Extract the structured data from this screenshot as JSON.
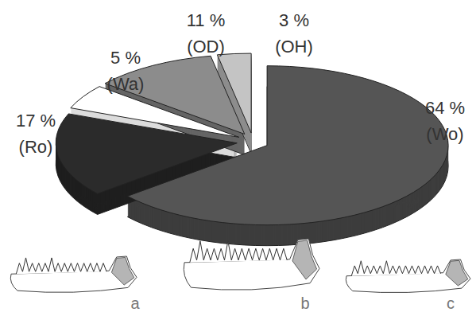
{
  "chart_data": {
    "type": "pie",
    "categories": [
      "(Wo)",
      "(Ro)",
      "(Wa)",
      "(OD)",
      "(OH)"
    ],
    "values": [
      64,
      17,
      5,
      11,
      3
    ],
    "value_labels": [
      "64 %",
      "17 %",
      "5 %",
      "11 %",
      "3 %"
    ],
    "colors": [
      "#555555",
      "#2b2b2b",
      "#ffffff",
      "#8c8c8c",
      "#c4c4c4"
    ],
    "data_labels": true
  },
  "figure": {
    "panel_labels": [
      "a",
      "b",
      "c"
    ]
  }
}
